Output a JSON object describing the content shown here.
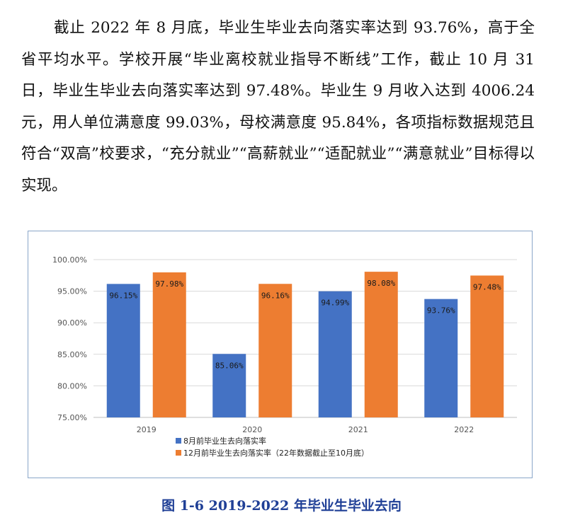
{
  "paragraph": "截止 2022 年 8 月底，毕业生毕业去向落实率达到 93.76%，高于全省平均水平。学校开展“毕业离校就业指导不断线”工作，截止 10 月 31 日，毕业生毕业去向落实率达到 97.48%。毕业生 9 月收入达到 4006.24 元，用人单位满意度 99.03%，母校满意度 95.84%，各项指标数据规范且符合“双高”校要求，“充分就业”“高薪就业”“适配就业”“满意就业”目标得以实现。",
  "caption": "图 1-6 2019-2022 年毕业生毕业去向",
  "chart_data": {
    "type": "bar",
    "categories": [
      "2019",
      "2020",
      "2021",
      "2022"
    ],
    "series": [
      {
        "name": "8月前毕业生去向落实率",
        "values": [
          96.15,
          85.06,
          94.99,
          93.76
        ],
        "labels": [
          "96.15%",
          "85.06%",
          "94.99%",
          "93.76%"
        ],
        "color": "#4472c4"
      },
      {
        "name": "12月前毕业生去向落实率（22年数据截止至10月底）",
        "values": [
          97.98,
          96.16,
          98.08,
          97.48
        ],
        "labels": [
          "97.98%",
          "96.16%",
          "98.08%",
          "97.48%"
        ],
        "color": "#ed7d31"
      }
    ],
    "yticks": [
      "100.00%",
      "95.00%",
      "90.00%",
      "85.00%",
      "80.00%",
      "75.00%"
    ],
    "ylim": [
      75,
      100
    ],
    "grid": true,
    "legend_position": "bottom-left",
    "title": "",
    "xlabel": "",
    "ylabel": ""
  }
}
